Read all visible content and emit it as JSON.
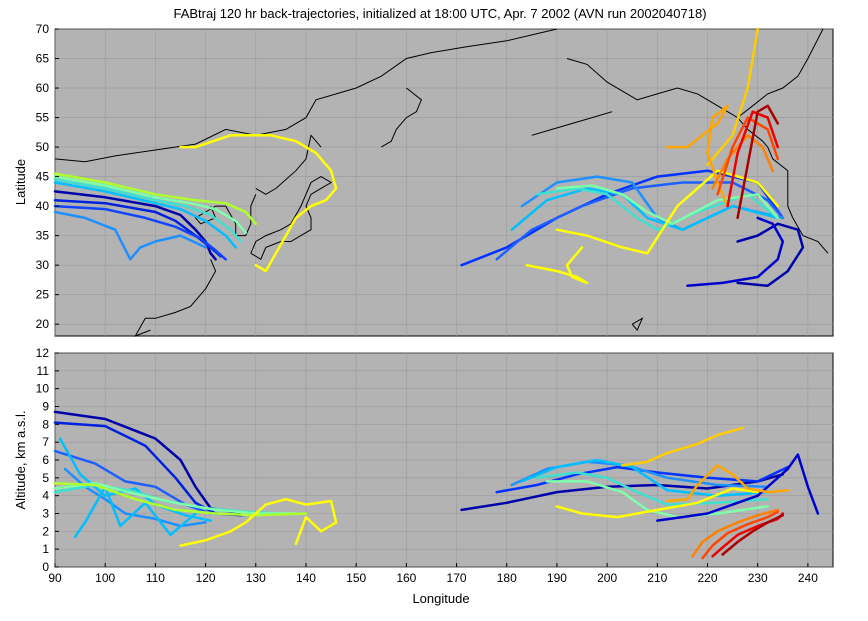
{
  "chart_data": [
    {
      "type": "line",
      "panel": "map",
      "title": "FABtraj 120 hr back-trajectories, initialized at 18:00 UTC, Apr. 7 2002 (AVN run 2002040718)",
      "xlabel": "",
      "ylabel": "Latitude",
      "xlim": [
        90,
        245
      ],
      "ylim": [
        18,
        70
      ],
      "xticks": [],
      "yticks": [
        20,
        25,
        30,
        35,
        40,
        45,
        50,
        55,
        60,
        65,
        70
      ],
      "grid": true,
      "background": "#b3b3b3",
      "coastline_color": "#000000",
      "series": [
        {
          "color": "#0000aa",
          "x": [
            90,
            100,
            110,
            115,
            118,
            120,
            121,
            122
          ],
          "y": [
            42.5,
            41.5,
            40,
            38.5,
            36,
            34,
            32,
            31
          ]
        },
        {
          "color": "#0022dd",
          "x": [
            90,
            100,
            110,
            114,
            118,
            121,
            123
          ],
          "y": [
            41,
            40.5,
            39,
            37.5,
            35,
            33,
            31.5
          ]
        },
        {
          "color": "#1144ff",
          "x": [
            90,
            100,
            108,
            114,
            119,
            122,
            124
          ],
          "y": [
            40,
            39.5,
            38,
            36.5,
            34.5,
            32.5,
            31
          ]
        },
        {
          "color": "#1e90ff",
          "x": [
            90,
            96,
            102,
            105,
            107,
            110,
            115,
            120
          ],
          "y": [
            39,
            38,
            36,
            31,
            33,
            34,
            35,
            33
          ]
        },
        {
          "color": "#00bfff",
          "x": [
            90,
            100,
            110,
            115,
            120,
            124,
            126
          ],
          "y": [
            44,
            42.5,
            40.5,
            39.5,
            37.5,
            35,
            33
          ]
        },
        {
          "color": "#40e0d0",
          "x": [
            90,
            100,
            110,
            116,
            121,
            125,
            127
          ],
          "y": [
            44.5,
            43,
            41,
            40,
            38.5,
            36,
            34
          ]
        },
        {
          "color": "#7fffaa",
          "x": [
            90,
            100,
            110,
            117,
            122,
            126,
            128
          ],
          "y": [
            45,
            43.5,
            41.5,
            40.5,
            39.5,
            37.5,
            35.5
          ]
        },
        {
          "color": "#adff2f",
          "x": [
            90,
            100,
            110,
            118,
            124,
            128,
            130
          ],
          "y": [
            45.5,
            44,
            42,
            41,
            40.5,
            39,
            37
          ]
        },
        {
          "color": "#ffff00",
          "x": [
            115,
            118,
            125,
            133,
            138,
            142,
            145,
            146,
            144,
            141,
            138,
            136,
            134,
            132,
            130
          ],
          "y": [
            50,
            50,
            52,
            52,
            51,
            49,
            46,
            43,
            41,
            40,
            38,
            35,
            32,
            29,
            30
          ]
        },
        {
          "color": "#0000aa",
          "x": [
            226,
            232,
            236,
            239,
            238,
            234,
            230,
            226
          ],
          "y": [
            27,
            26.5,
            29,
            33,
            36,
            37,
            35,
            34
          ]
        },
        {
          "color": "#0000cc",
          "x": [
            216,
            223,
            230,
            234,
            235,
            233,
            230
          ],
          "y": [
            26.5,
            27,
            28,
            31,
            34,
            37,
            38
          ]
        },
        {
          "color": "#0033ff",
          "x": [
            171,
            180,
            190,
            200,
            210,
            220,
            230,
            235
          ],
          "y": [
            30,
            33,
            38,
            42,
            45,
            46,
            44,
            38
          ]
        },
        {
          "color": "#1e60ff",
          "x": [
            178,
            185,
            195,
            205,
            215,
            225,
            232,
            235
          ],
          "y": [
            31,
            36,
            40,
            43,
            44,
            44,
            41,
            38
          ]
        },
        {
          "color": "#1e90ff",
          "x": [
            183,
            190,
            198,
            205,
            210,
            215,
            225,
            235
          ],
          "y": [
            40,
            44,
            45,
            44,
            38,
            36,
            40,
            38
          ]
        },
        {
          "color": "#00bfff",
          "x": [
            181,
            188,
            196,
            203,
            208,
            215,
            225,
            234
          ],
          "y": [
            36,
            41,
            43,
            42,
            38,
            36,
            40,
            38
          ]
        },
        {
          "color": "#40e0d0",
          "x": [
            186,
            194,
            200,
            206,
            210,
            218,
            228,
            234
          ],
          "y": [
            42,
            43,
            42,
            38,
            36,
            39,
            42,
            38
          ]
        },
        {
          "color": "#7fffaa",
          "x": [
            190,
            197,
            203,
            208,
            213,
            222,
            230,
            234
          ],
          "y": [
            43,
            43.5,
            42,
            39,
            37,
            41,
            42,
            38
          ]
        },
        {
          "color": "#ffff00",
          "x": [
            184,
            190,
            194,
            196,
            193,
            192,
            195
          ],
          "y": [
            30,
            29,
            28,
            27,
            28,
            30,
            33
          ]
        },
        {
          "color": "#ffff00",
          "x": [
            190,
            196,
            203,
            208,
            214,
            222,
            230,
            234
          ],
          "y": [
            36,
            35,
            33,
            32,
            40,
            46,
            44,
            40
          ]
        },
        {
          "color": "#ffcc00",
          "x": [
            220,
            225,
            228,
            230
          ],
          "y": [
            47,
            52,
            60,
            70
          ]
        },
        {
          "color": "#ffa500",
          "x": [
            212,
            216,
            222,
            224,
            221,
            220,
            222,
            224
          ],
          "y": [
            50,
            50,
            54,
            57,
            55,
            49,
            44,
            40
          ]
        },
        {
          "color": "#ff7f00",
          "x": [
            221,
            224,
            228,
            231,
            233
          ],
          "y": [
            43,
            48,
            52,
            50,
            46
          ]
        },
        {
          "color": "#ff4500",
          "x": [
            222,
            225,
            228,
            232,
            234
          ],
          "y": [
            42,
            50,
            55,
            53,
            48
          ]
        },
        {
          "color": "#ee0000",
          "x": [
            224,
            226,
            229,
            232,
            234
          ],
          "y": [
            40,
            49,
            56,
            55,
            50
          ]
        },
        {
          "color": "#aa0000",
          "x": [
            226,
            228,
            230,
            232,
            234
          ],
          "y": [
            38,
            47,
            56,
            57,
            54
          ]
        }
      ]
    },
    {
      "type": "line",
      "panel": "altitude",
      "title": "",
      "xlabel": "Longitude",
      "ylabel": "Altitude, km a.s.l.",
      "xlim": [
        90,
        245
      ],
      "ylim": [
        0,
        12
      ],
      "xticks": [
        90,
        100,
        110,
        120,
        130,
        140,
        150,
        160,
        170,
        180,
        190,
        200,
        210,
        220,
        230,
        240
      ],
      "yticks": [
        0,
        1,
        2,
        3,
        4,
        5,
        6,
        7,
        8,
        9,
        10,
        11,
        12
      ],
      "grid": true,
      "background": "#b3b3b3",
      "series": [
        {
          "color": "#0000aa",
          "x": [
            90,
            100,
            110,
            115,
            118,
            121,
            125,
            129
          ],
          "y": [
            8.7,
            8.3,
            7.2,
            6,
            4.5,
            3.3,
            3.1,
            3
          ]
        },
        {
          "color": "#0022dd",
          "x": [
            90,
            100,
            108,
            114,
            118,
            122,
            127,
            130
          ],
          "y": [
            8.1,
            7.9,
            6.8,
            5,
            3.6,
            3,
            2.9,
            3
          ]
        },
        {
          "color": "#1e60ff",
          "x": [
            90,
            98,
            104,
            110,
            116,
            121
          ],
          "y": [
            6.5,
            5.8,
            4.8,
            4.5,
            3.5,
            3
          ]
        },
        {
          "color": "#1e90ff",
          "x": [
            92,
            96,
            100,
            104,
            110,
            115,
            120
          ],
          "y": [
            5.5,
            4.5,
            3.8,
            3,
            2.7,
            2.3,
            2.5
          ]
        },
        {
          "color": "#00bfff",
          "x": [
            91,
            95,
            100,
            106,
            110,
            116,
            121
          ],
          "y": [
            7.2,
            5.2,
            4,
            4.4,
            3.5,
            2.9,
            2.6
          ]
        },
        {
          "color": "#00bfff",
          "x": [
            94,
            96,
            100,
            103,
            108,
            113,
            118
          ],
          "y": [
            1.7,
            2.5,
            4.5,
            2.3,
            3.6,
            1.8,
            3
          ]
        },
        {
          "color": "#40e0d0",
          "x": [
            90,
            98,
            105,
            112,
            120,
            128,
            135
          ],
          "y": [
            4.2,
            4.6,
            4.3,
            3.7,
            3.3,
            3.1,
            3
          ]
        },
        {
          "color": "#7fffaa",
          "x": [
            90,
            98,
            106,
            114,
            122,
            130,
            138
          ],
          "y": [
            4.4,
            4.7,
            4.1,
            3.6,
            3.2,
            3,
            3
          ]
        },
        {
          "color": "#adff2f",
          "x": [
            90,
            98,
            106,
            114,
            122,
            130,
            140
          ],
          "y": [
            4.7,
            4.6,
            3.8,
            3.2,
            3,
            2.9,
            3
          ]
        },
        {
          "color": "#ffff00",
          "x": [
            115,
            120,
            125,
            128,
            132,
            136,
            140,
            145,
            146,
            143,
            140,
            138
          ],
          "y": [
            1.2,
            1.5,
            2,
            2.5,
            3.5,
            3.8,
            3.5,
            3.7,
            2.5,
            2,
            2.8,
            1.3
          ]
        },
        {
          "color": "#0000aa",
          "x": [
            171,
            180,
            190,
            200,
            210,
            220,
            230,
            235
          ],
          "y": [
            3.2,
            3.6,
            4.2,
            4.5,
            4.6,
            4.4,
            4.8,
            5.2
          ]
        },
        {
          "color": "#0033ff",
          "x": [
            178,
            186,
            194,
            202,
            210,
            220,
            230,
            236
          ],
          "y": [
            4.2,
            4.6,
            5.2,
            5.6,
            5.3,
            5,
            4.8,
            5.6
          ]
        },
        {
          "color": "#1e90ff",
          "x": [
            181,
            188,
            196,
            204,
            212,
            222,
            232
          ],
          "y": [
            4.6,
            5.5,
            5.9,
            5.7,
            5,
            4.6,
            4.5
          ]
        },
        {
          "color": "#00bfff",
          "x": [
            183,
            190,
            198,
            205,
            212,
            222,
            232
          ],
          "y": [
            4.8,
            5.6,
            6,
            5.6,
            4.3,
            4,
            4.2
          ]
        },
        {
          "color": "#40e0d0",
          "x": [
            186,
            194,
            200,
            206,
            212,
            222,
            232
          ],
          "y": [
            5,
            5.3,
            5,
            4.2,
            3.5,
            3.6,
            3.8
          ]
        },
        {
          "color": "#7fffaa",
          "x": [
            188,
            196,
            203,
            208,
            214,
            222,
            232
          ],
          "y": [
            4.8,
            4.8,
            4.2,
            3.2,
            2.8,
            3,
            3.4
          ]
        },
        {
          "color": "#0000cc",
          "x": [
            210,
            220,
            230,
            236,
            238,
            240,
            242
          ],
          "y": [
            2.6,
            3,
            4,
            5.5,
            6.3,
            4.5,
            3
          ]
        },
        {
          "color": "#ffff00",
          "x": [
            190,
            195,
            202,
            210,
            218,
            225,
            230
          ],
          "y": [
            3.4,
            3,
            2.8,
            3.2,
            3.6,
            4.4,
            4.2
          ]
        },
        {
          "color": "#ffcc00",
          "x": [
            203,
            208,
            212,
            218,
            222,
            227
          ],
          "y": [
            5.7,
            5.9,
            6.4,
            6.9,
            7.4,
            7.8
          ]
        },
        {
          "color": "#ffa500",
          "x": [
            212,
            216,
            218,
            222,
            225,
            228,
            232,
            236
          ],
          "y": [
            3.7,
            3.8,
            4.6,
            5.7,
            5.2,
            4.4,
            4.2,
            4.3
          ]
        },
        {
          "color": "#ff7f00",
          "x": [
            217,
            219,
            222,
            226,
            230,
            234
          ],
          "y": [
            0.6,
            1.4,
            2,
            2.5,
            2.9,
            3.2
          ]
        },
        {
          "color": "#ff4500",
          "x": [
            219,
            221,
            224,
            228,
            232,
            234
          ],
          "y": [
            0.5,
            1.2,
            1.9,
            2.4,
            2.8,
            3.1
          ]
        },
        {
          "color": "#ee0000",
          "x": [
            221,
            223,
            226,
            230,
            234,
            235
          ],
          "y": [
            0.6,
            1.1,
            1.8,
            2.3,
            2.7,
            3
          ]
        },
        {
          "color": "#aa0000",
          "x": [
            223,
            226,
            229,
            232,
            235
          ],
          "y": [
            0.7,
            1.4,
            2,
            2.5,
            2.9
          ]
        }
      ]
    }
  ]
}
